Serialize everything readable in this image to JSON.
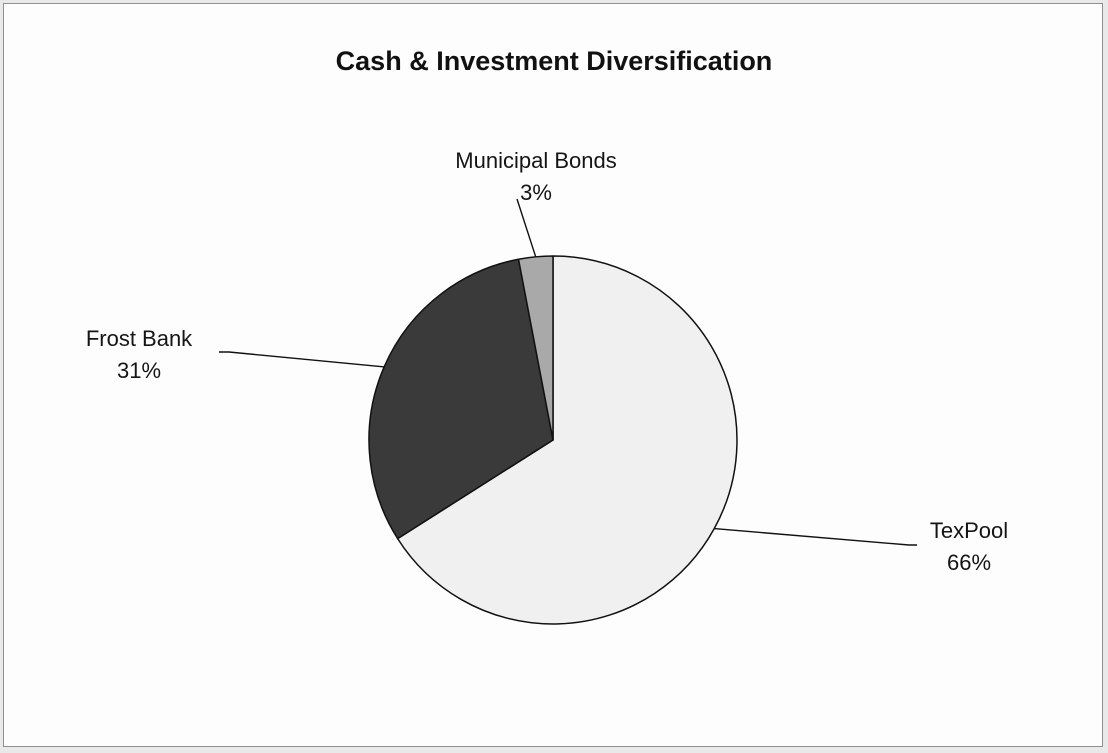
{
  "chart_data": {
    "type": "pie",
    "title": "Cash & Investment Diversification",
    "slices": [
      {
        "name": "TexPool",
        "percent_label": "66%",
        "value": 66,
        "color": "#f0f0f0"
      },
      {
        "name": "Frost Bank",
        "percent_label": "31%",
        "value": 31,
        "color": "#3a3a3a"
      },
      {
        "name": "Municipal Bonds",
        "percent_label": "3%",
        "value": 3,
        "color": "#a9a9a9"
      }
    ],
    "data_labels": "category name and percentage",
    "legend": "none",
    "start_angle": "12 o'clock, clockwise"
  }
}
